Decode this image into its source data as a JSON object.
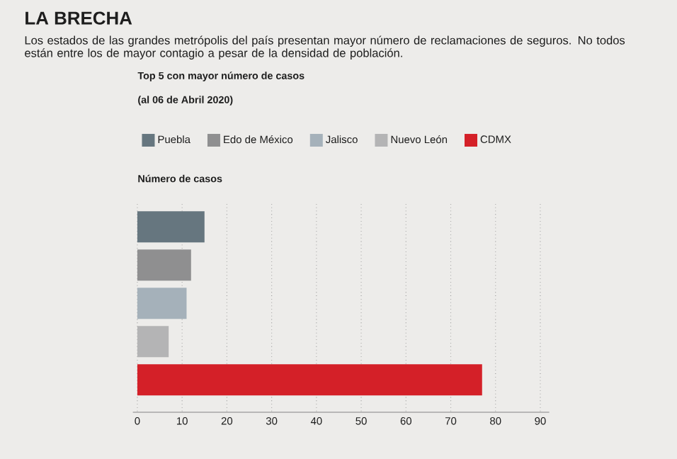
{
  "chart_data": {
    "type": "bar",
    "orientation": "horizontal",
    "title": "LA BRECHA",
    "subtitle": "Los estados de las grandes metrópolis del país presentan mayor número de reclamaciones de seguros. No todos están entre los de mayor contagio a pesar de la densidad de población.",
    "annotations": [
      "Top 5 con mayor número de casos",
      "(al 06 de Abril 2020)"
    ],
    "xlabel": "Número de casos",
    "categories": [
      null,
      null,
      null,
      null,
      null
    ],
    "series": [
      {
        "name": "Puebla",
        "color": "#66767f",
        "values": [
          15,
          null,
          null,
          null,
          null
        ]
      },
      {
        "name": "Edo de México",
        "color": "#8f8f90",
        "values": [
          null,
          12,
          null,
          null,
          null
        ]
      },
      {
        "name": "Jalisco",
        "color": "#a5b1ba",
        "values": [
          null,
          null,
          11,
          null,
          null
        ]
      },
      {
        "name": "Nuevo León",
        "color": "#b4b4b5",
        "values": [
          null,
          null,
          null,
          7,
          null
        ]
      },
      {
        "name": "CDMX",
        "color": "#d42028",
        "values": [
          null,
          null,
          null,
          null,
          77
        ]
      }
    ],
    "xlim": [
      -1,
      92
    ],
    "xticks": [
      0,
      10,
      20,
      30,
      40,
      50,
      60,
      70,
      80,
      90
    ],
    "grid": "x",
    "legend": "top",
    "tick_labels": "x"
  }
}
